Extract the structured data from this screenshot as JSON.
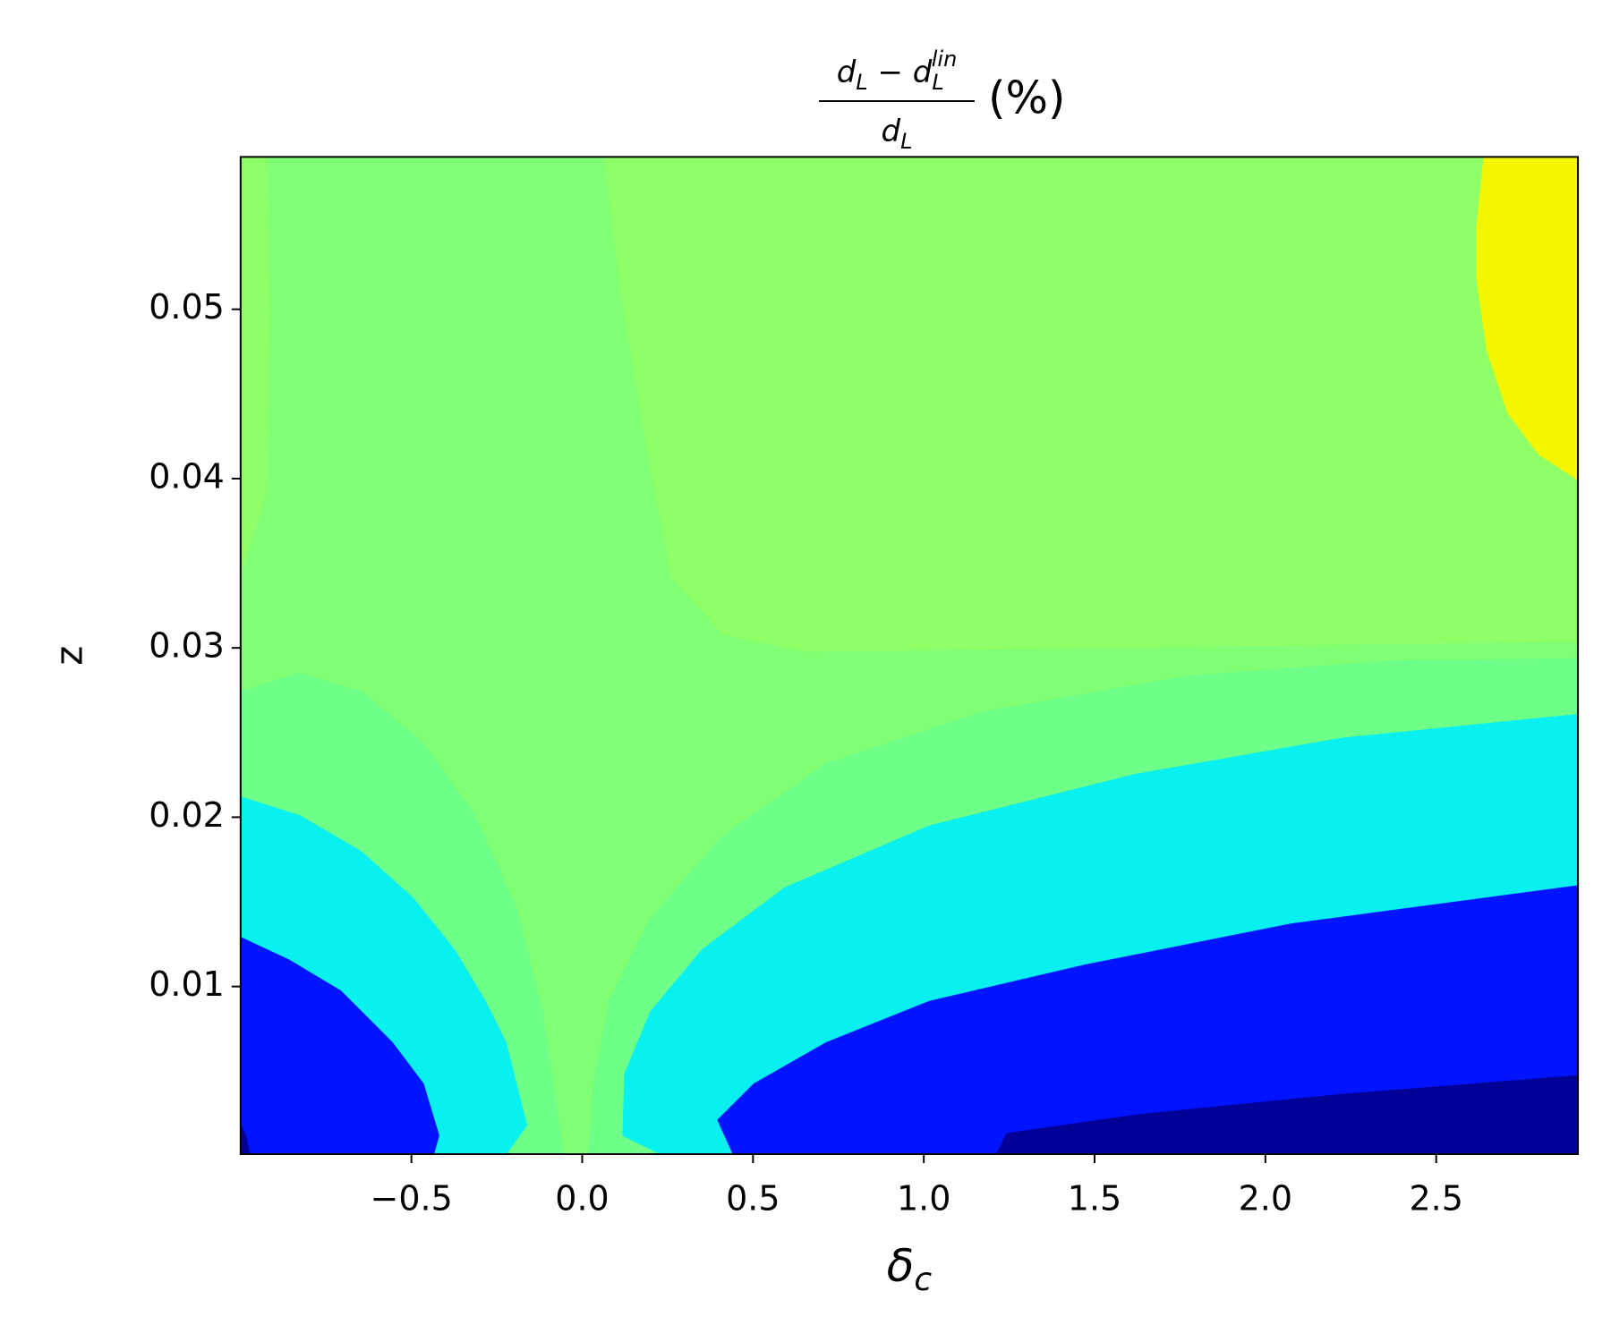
{
  "chart_data": {
    "type": "contour",
    "title": {
      "numerator": [
        "d",
        "L",
        " − d",
        "L",
        "lin"
      ],
      "denominator": [
        "d",
        "L"
      ],
      "unit": "(%)"
    },
    "x_label": [
      "δ",
      "c"
    ],
    "y_label": "z",
    "xlim": [
      -1.0,
      2.915
    ],
    "ylim": [
      0.0001,
      0.059
    ],
    "xticks": [
      {
        "value": -0.5,
        "label": "−0.5"
      },
      {
        "value": 0,
        "label": "0.0"
      },
      0.5,
      {
        "value": 1,
        "label": "1.0"
      },
      1.5,
      {
        "value": 2,
        "label": "2.0"
      },
      2.5
    ],
    "yticks": [
      0.01,
      0.02,
      0.03,
      0.04,
      0.05
    ],
    "colors": [
      "#8eff66",
      "#80ff74",
      "#6dff88",
      "#08f0f0",
      "#0014ff",
      "#000096",
      "#f5f500"
    ]
  }
}
